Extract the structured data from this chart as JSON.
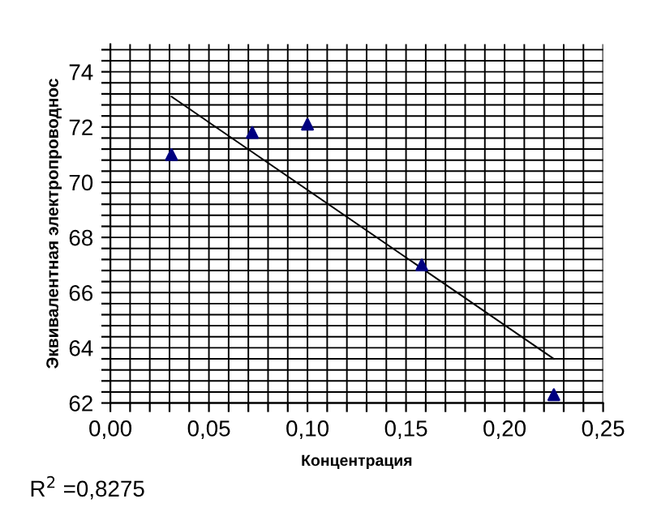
{
  "chart_data": {
    "type": "scatter",
    "xlabel": "Концентрация",
    "ylabel": "Эквивалентная электропроводнос",
    "annotations": [
      "R$^{2}$ =0,8275"
    ],
    "series": [
      {
        "color": "#000080",
        "marker": "triangle",
        "x": [
          0.031,
          0.072,
          0.1,
          0.158,
          0.225
        ],
        "values": [
          71.0,
          71.8,
          72.1,
          67.0,
          62.3
        ]
      },
      {
        "type": "line",
        "color": "#000000",
        "marker": "none",
        "line_style": "solid",
        "x": [
          0.031,
          0.225
        ],
        "values": [
          73.1,
          63.6
        ]
      }
    ],
    "xlim": [
      0,
      0.25
    ],
    "ylim": [
      62,
      75
    ],
    "xticks": [
      {
        "value": 0,
        "label": "0,00"
      },
      {
        "value": 0.01,
        "label": null
      },
      {
        "value": 0.02,
        "label": null
      },
      {
        "value": 0.03,
        "label": null
      },
      {
        "value": 0.04,
        "label": null
      },
      {
        "value": 0.05,
        "label": "0,05"
      },
      {
        "value": 0.06,
        "label": null
      },
      {
        "value": 0.07,
        "label": null
      },
      {
        "value": 0.08,
        "label": null
      },
      {
        "value": 0.09,
        "label": null
      },
      {
        "value": 0.1,
        "label": "0,10"
      },
      {
        "value": 0.11,
        "label": null
      },
      {
        "value": 0.12,
        "label": null
      },
      {
        "value": 0.13,
        "label": null
      },
      {
        "value": 0.14,
        "label": null
      },
      {
        "value": 0.15,
        "label": "0,15"
      },
      {
        "value": 0.16,
        "label": null
      },
      {
        "value": 0.17,
        "label": null
      },
      {
        "value": 0.18,
        "label": null
      },
      {
        "value": 0.19,
        "label": null
      },
      {
        "value": 0.2,
        "label": "0,20"
      },
      {
        "value": 0.21,
        "label": null
      },
      {
        "value": 0.22,
        "label": null
      },
      {
        "value": 0.23,
        "label": null
      },
      {
        "value": 0.24,
        "label": null
      },
      {
        "value": 0.25,
        "label": "0,25"
      }
    ],
    "yticks": [
      62,
      {
        "value": 62.4,
        "label": null
      },
      {
        "value": 62.8,
        "label": null
      },
      {
        "value": 63.2,
        "label": null
      },
      {
        "value": 63.6,
        "label": null
      },
      64,
      {
        "value": 64.4,
        "label": null
      },
      {
        "value": 64.8,
        "label": null
      },
      {
        "value": 65.2,
        "label": null
      },
      {
        "value": 65.6,
        "label": null
      },
      66,
      {
        "value": 66.4,
        "label": null
      },
      {
        "value": 66.8,
        "label": null
      },
      {
        "value": 67.2,
        "label": null
      },
      {
        "value": 67.6,
        "label": null
      },
      68,
      {
        "value": 68.4,
        "label": null
      },
      {
        "value": 68.8,
        "label": null
      },
      {
        "value": 69.2,
        "label": null
      },
      {
        "value": 69.6,
        "label": null
      },
      70,
      {
        "value": 70.4,
        "label": null
      },
      {
        "value": 70.8,
        "label": null
      },
      {
        "value": 71.2,
        "label": null
      },
      {
        "value": 71.6,
        "label": null
      },
      72,
      {
        "value": 72.4,
        "label": null
      },
      {
        "value": 72.8,
        "label": null
      },
      {
        "value": 73.2,
        "label": null
      },
      {
        "value": 73.6,
        "label": null
      },
      74,
      {
        "value": 74.4,
        "label": null
      },
      {
        "value": 74.8,
        "label": null
      }
    ],
    "grid": true
  }
}
